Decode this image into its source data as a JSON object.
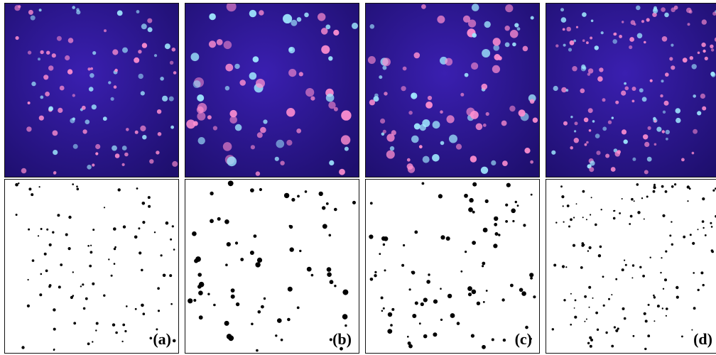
{
  "figure": {
    "panels": [
      {
        "label": "(a)",
        "dot_density": "sparse-small"
      },
      {
        "label": "(b)",
        "dot_density": "sparse-large"
      },
      {
        "label": "(c)",
        "dot_density": "medium"
      },
      {
        "label": "(d)",
        "dot_density": "dense-small"
      }
    ],
    "colors": {
      "photo_background": "#3a1fb0",
      "photo_background_dark": "#1e0f6e",
      "dot_pink": "#ff8fd0",
      "dot_cyan": "#9fe8ff",
      "binary_background": "#ffffff",
      "binary_dot": "#000000"
    }
  }
}
